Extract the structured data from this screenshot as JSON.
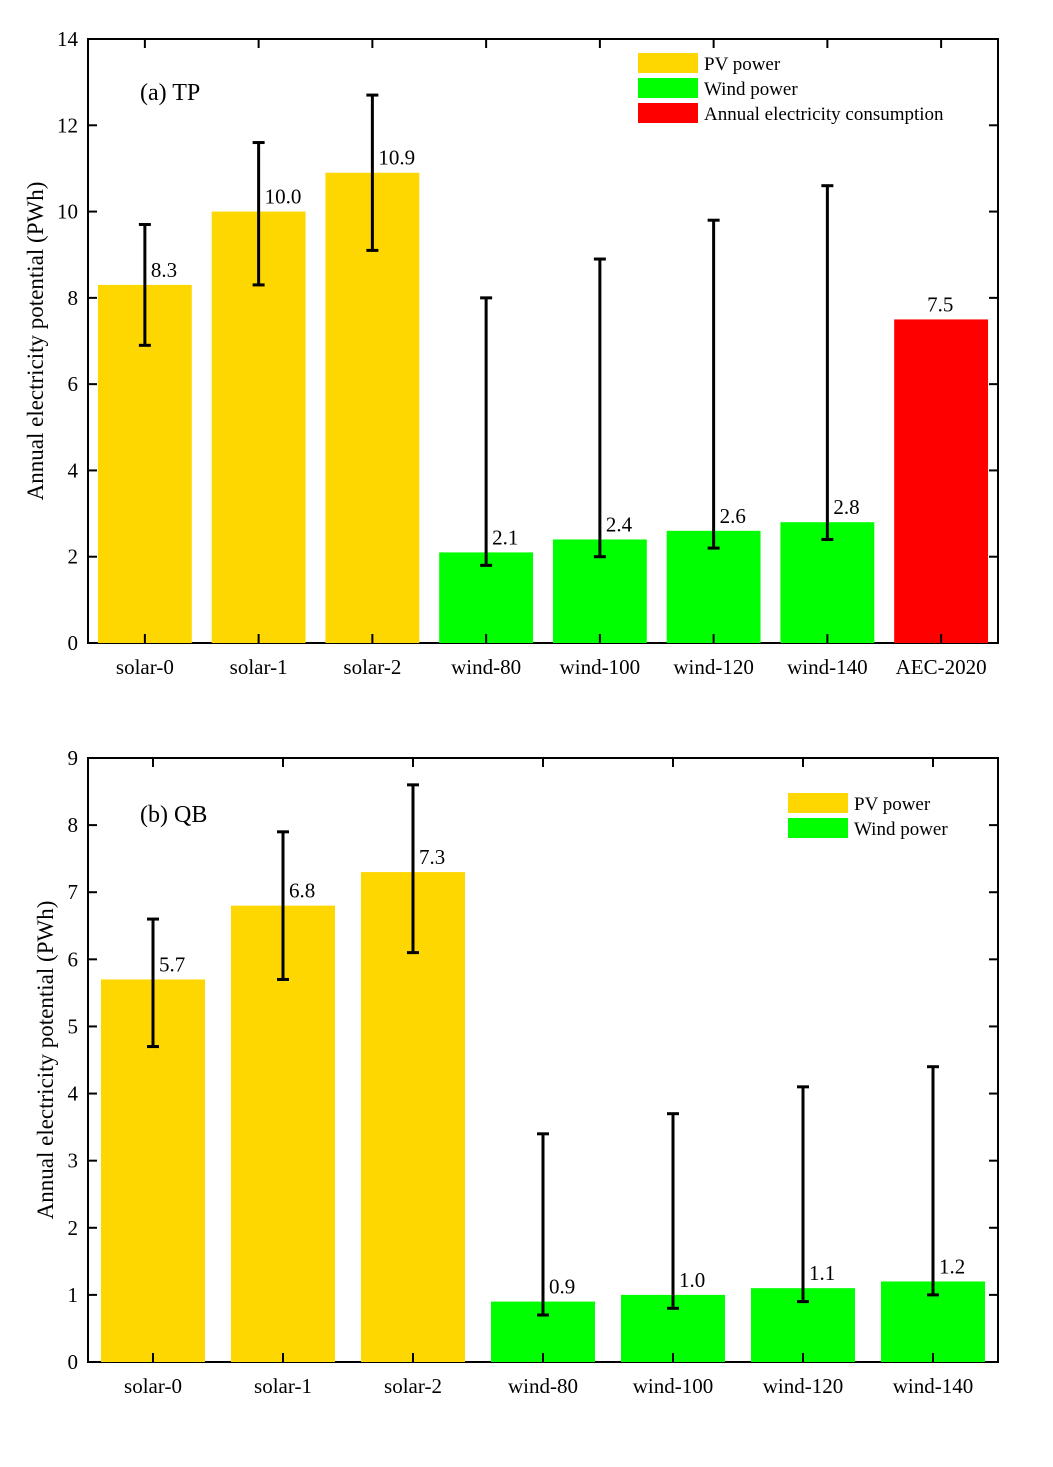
{
  "colors": {
    "pv": "#FFD700",
    "wind": "#00FF00",
    "aec": "#FF0000",
    "errorbar": "#000000",
    "axis": "#000000"
  },
  "chart_data": [
    {
      "type": "bar",
      "title": "(a) TP",
      "xlabel": "",
      "ylabel": "Annual electricity potential (PWh)",
      "ylim": [
        0,
        14
      ],
      "yticks": [
        0,
        2,
        4,
        6,
        8,
        10,
        12,
        14
      ],
      "grid": false,
      "legend_position": "top-right",
      "categories": [
        "solar-0",
        "solar-1",
        "solar-2",
        "wind-80",
        "wind-100",
        "wind-120",
        "wind-140",
        "AEC-2020"
      ],
      "values": [
        8.3,
        10.0,
        10.9,
        2.1,
        2.4,
        2.6,
        2.8,
        7.5
      ],
      "value_labels": [
        "8.3",
        "10.0",
        "10.9",
        "2.1",
        "2.4",
        "2.6",
        "2.8",
        "7.5"
      ],
      "error_low": [
        6.9,
        8.3,
        9.1,
        1.8,
        2.0,
        2.2,
        2.4,
        null
      ],
      "error_high": [
        9.7,
        11.6,
        12.7,
        8.0,
        8.9,
        9.8,
        10.6,
        null
      ],
      "bar_group": [
        "pv",
        "pv",
        "pv",
        "wind",
        "wind",
        "wind",
        "wind",
        "aec"
      ],
      "legend": [
        {
          "key": "pv",
          "label": "PV power"
        },
        {
          "key": "wind",
          "label": "Wind power"
        },
        {
          "key": "aec",
          "label": "Annual electricity consumption"
        }
      ]
    },
    {
      "type": "bar",
      "title": "(b) QB",
      "xlabel": "",
      "ylabel": "Annual electricity potential (PWh)",
      "ylim": [
        0,
        9
      ],
      "yticks": [
        0,
        1,
        2,
        3,
        4,
        5,
        6,
        7,
        8,
        9
      ],
      "grid": false,
      "legend_position": "top-right",
      "categories": [
        "solar-0",
        "solar-1",
        "solar-2",
        "wind-80",
        "wind-100",
        "wind-120",
        "wind-140"
      ],
      "values": [
        5.7,
        6.8,
        7.3,
        0.9,
        1.0,
        1.1,
        1.2
      ],
      "value_labels": [
        "5.7",
        "6.8",
        "7.3",
        "0.9",
        "1.0",
        "1.1",
        "1.2"
      ],
      "error_low": [
        4.7,
        5.7,
        6.1,
        0.7,
        0.8,
        0.9,
        1.0
      ],
      "error_high": [
        6.6,
        7.9,
        8.6,
        3.4,
        3.7,
        4.1,
        4.4
      ],
      "bar_group": [
        "pv",
        "pv",
        "pv",
        "wind",
        "wind",
        "wind",
        "wind"
      ],
      "legend": [
        {
          "key": "pv",
          "label": "PV power"
        },
        {
          "key": "wind",
          "label": "Wind power"
        }
      ]
    }
  ]
}
